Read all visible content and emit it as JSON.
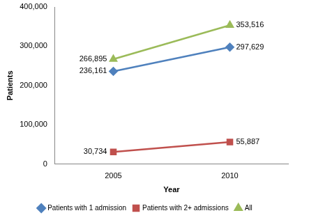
{
  "chart_data": {
    "type": "line",
    "x_label": "Year",
    "y_label": "Patients",
    "categories": [
      "2005",
      "2010"
    ],
    "series": [
      {
        "name": "Patients with 1 admission",
        "color": "#4F81BD",
        "marker": "diamond",
        "values": [
          236161,
          297629
        ],
        "value_labels": [
          "236,161",
          "297,629"
        ]
      },
      {
        "name": "Patients with 2+ admissions",
        "color": "#C0504D",
        "marker": "square",
        "values": [
          30734,
          55887
        ],
        "value_labels": [
          "30,734",
          "55,887"
        ]
      },
      {
        "name": "All",
        "color": "#9BBB59",
        "marker": "triangle",
        "values": [
          266895,
          353516
        ],
        "value_labels": [
          "266,895",
          "353,516"
        ]
      }
    ],
    "ylim": [
      0,
      400000
    ],
    "yticks": [
      0,
      {
        "value": 100000,
        "label": "100,000"
      },
      {
        "value": 200000,
        "label": "200,000"
      },
      {
        "value": 300000,
        "label": "300,000"
      },
      {
        "value": 400000,
        "label": "400,000"
      }
    ],
    "grid": false,
    "legend": "bottom",
    "data_labels": true
  }
}
